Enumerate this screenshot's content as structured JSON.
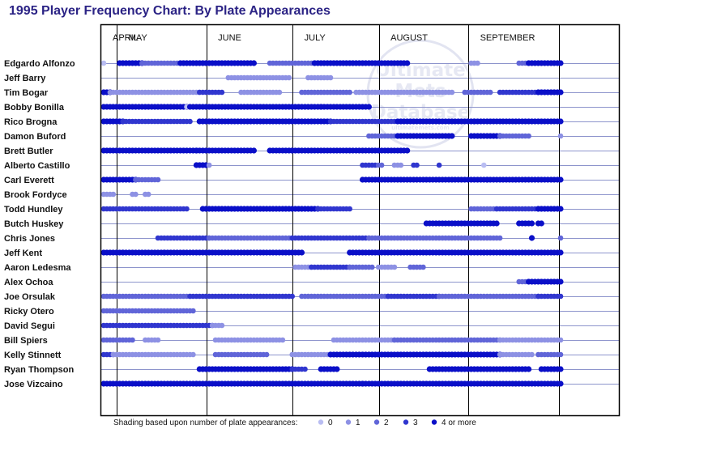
{
  "chart_title": "1995 Player Frequency Chart: By Plate Appearances",
  "watermark": {
    "lines": [
      "Ultimate",
      "Mets",
      "Database"
    ],
    "url": "ultimatemets.com"
  },
  "colors": {
    "level_0": "#b9bdf2",
    "level_1": "#8d91e4",
    "level_2": "#6065d8",
    "level_3": "#3036cf",
    "level_4": "#0a0fc8",
    "gridline": "#8d94cc",
    "frame": "#000000",
    "title": "#2b2385"
  },
  "legend": {
    "label": "Shading based upon number of plate appearances:",
    "items": [
      {
        "level": 0,
        "text": "0"
      },
      {
        "level": 1,
        "text": "1"
      },
      {
        "level": 2,
        "text": "2"
      },
      {
        "level": 3,
        "text": "3"
      },
      {
        "level": 4,
        "text": "4 or more"
      }
    ]
  },
  "chart_data": {
    "type": "scatter",
    "title": "1995 Player Frequency Chart: By Plate Appearances",
    "x_axis": {
      "unit": "game",
      "range": [
        1,
        144
      ]
    },
    "months": [
      {
        "name": "APRIL",
        "start_game": 1
      },
      {
        "name": "MAY",
        "start_game": 6
      },
      {
        "name": "JUNE",
        "start_game": 34
      },
      {
        "name": "JULY",
        "start_game": 61
      },
      {
        "name": "AUGUST",
        "start_game": 88
      },
      {
        "name": "SEPTEMBER",
        "start_game": 116
      }
    ],
    "players": [
      {
        "name": "Edgardo Alfonzo",
        "segments": [
          [
            1,
            1,
            0
          ],
          [
            6,
            13,
            4
          ],
          [
            13,
            25,
            2
          ],
          [
            25,
            48,
            4
          ],
          [
            53,
            67,
            2
          ],
          [
            67,
            96,
            4
          ],
          [
            116,
            118,
            1
          ],
          [
            131,
            134,
            2
          ],
          [
            134,
            144,
            4
          ]
        ]
      },
      {
        "name": "Jeff Barry",
        "segments": [
          [
            40,
            59,
            1
          ],
          [
            65,
            72,
            1
          ]
        ]
      },
      {
        "name": "Tim Bogar",
        "segments": [
          [
            1,
            3,
            4
          ],
          [
            3,
            31,
            1
          ],
          [
            31,
            38,
            3
          ],
          [
            44,
            56,
            1
          ],
          [
            63,
            78,
            2
          ],
          [
            80,
            110,
            1
          ],
          [
            114,
            122,
            2
          ],
          [
            125,
            137,
            3
          ],
          [
            137,
            144,
            4
          ]
        ]
      },
      {
        "name": "Bobby Bonilla",
        "segments": [
          [
            1,
            27,
            4
          ],
          [
            27,
            28,
            0
          ],
          [
            28,
            69,
            4
          ],
          [
            69,
            84,
            4
          ]
        ]
      },
      {
        "name": "Rico Brogna",
        "segments": [
          [
            1,
            7,
            4
          ],
          [
            7,
            28,
            3
          ],
          [
            31,
            72,
            4
          ],
          [
            72,
            93,
            3
          ],
          [
            93,
            117,
            4
          ],
          [
            117,
            144,
            4
          ]
        ]
      },
      {
        "name": "Damon Buford",
        "segments": [
          [
            84,
            93,
            2
          ],
          [
            93,
            110,
            4
          ],
          [
            116,
            125,
            4
          ],
          [
            125,
            134,
            2
          ],
          [
            144,
            144,
            1
          ]
        ]
      },
      {
        "name": "Brett Butler",
        "segments": [
          [
            1,
            9,
            4
          ],
          [
            9,
            30,
            4
          ],
          [
            30,
            48,
            4
          ],
          [
            53,
            60,
            4
          ],
          [
            60,
            96,
            4
          ]
        ]
      },
      {
        "name": "Alberto Castillo",
        "segments": [
          [
            30,
            33,
            4
          ],
          [
            34,
            34,
            1
          ],
          [
            82,
            86,
            3
          ],
          [
            87,
            88,
            2
          ],
          [
            92,
            94,
            1
          ],
          [
            98,
            99,
            3
          ],
          [
            106,
            106,
            3
          ],
          [
            120,
            120,
            0
          ]
        ]
      },
      {
        "name": "Carl Everett",
        "segments": [
          [
            1,
            11,
            4
          ],
          [
            11,
            18,
            2
          ],
          [
            82,
            121,
            4
          ],
          [
            121,
            144,
            4
          ]
        ]
      },
      {
        "name": "Brook Fordyce",
        "segments": [
          [
            1,
            4,
            1
          ],
          [
            10,
            11,
            1
          ],
          [
            14,
            15,
            1
          ]
        ]
      },
      {
        "name": "Todd Hundley",
        "segments": [
          [
            1,
            27,
            3
          ],
          [
            32,
            68,
            4
          ],
          [
            68,
            78,
            3
          ],
          [
            116,
            124,
            2
          ],
          [
            124,
            137,
            3
          ],
          [
            137,
            144,
            4
          ]
        ]
      },
      {
        "name": "Butch Huskey",
        "segments": [
          [
            102,
            124,
            4
          ],
          [
            131,
            135,
            4
          ],
          [
            137,
            138,
            4
          ]
        ]
      },
      {
        "name": "Chris Jones",
        "segments": [
          [
            18,
            34,
            3
          ],
          [
            34,
            60,
            2
          ],
          [
            60,
            84,
            3
          ],
          [
            84,
            125,
            2
          ],
          [
            135,
            135,
            4
          ],
          [
            144,
            144,
            2
          ]
        ]
      },
      {
        "name": "Jeff Kent",
        "segments": [
          [
            1,
            7,
            4
          ],
          [
            7,
            20,
            4
          ],
          [
            20,
            63,
            4
          ],
          [
            78,
            120,
            4
          ],
          [
            120,
            144,
            4
          ]
        ]
      },
      {
        "name": "Aaron Ledesma",
        "segments": [
          [
            61,
            66,
            1
          ],
          [
            66,
            78,
            3
          ],
          [
            78,
            85,
            2
          ],
          [
            87,
            92,
            1
          ],
          [
            97,
            101,
            2
          ]
        ]
      },
      {
        "name": "Alex Ochoa",
        "segments": [
          [
            131,
            133,
            2
          ],
          [
            134,
            144,
            4
          ]
        ]
      },
      {
        "name": "Joe Orsulak",
        "segments": [
          [
            1,
            28,
            2
          ],
          [
            28,
            60,
            3
          ],
          [
            63,
            90,
            2
          ],
          [
            90,
            106,
            3
          ],
          [
            106,
            137,
            2
          ],
          [
            137,
            144,
            3
          ]
        ]
      },
      {
        "name": "Ricky Otero",
        "segments": [
          [
            1,
            29,
            2
          ]
        ]
      },
      {
        "name": "David Segui",
        "segments": [
          [
            1,
            35,
            3
          ],
          [
            35,
            38,
            1
          ]
        ]
      },
      {
        "name": "Bill Spiers",
        "segments": [
          [
            1,
            10,
            2
          ],
          [
            14,
            18,
            1
          ],
          [
            36,
            57,
            1
          ],
          [
            73,
            92,
            1
          ],
          [
            92,
            125,
            2
          ],
          [
            125,
            144,
            1
          ]
        ]
      },
      {
        "name": "Kelly Stinnett",
        "segments": [
          [
            1,
            4,
            3
          ],
          [
            4,
            29,
            1
          ],
          [
            36,
            52,
            2
          ],
          [
            60,
            72,
            1
          ],
          [
            72,
            125,
            4
          ],
          [
            125,
            135,
            1
          ],
          [
            137,
            144,
            2
          ]
        ]
      },
      {
        "name": "Ryan Thompson",
        "segments": [
          [
            31,
            60,
            4
          ],
          [
            60,
            64,
            3
          ],
          [
            69,
            74,
            4
          ],
          [
            103,
            134,
            4
          ],
          [
            138,
            144,
            4
          ]
        ]
      },
      {
        "name": "Jose Vizcaino",
        "segments": [
          [
            1,
            30,
            4
          ],
          [
            30,
            82,
            4
          ],
          [
            82,
            132,
            4
          ],
          [
            133,
            144,
            4
          ]
        ]
      }
    ]
  }
}
